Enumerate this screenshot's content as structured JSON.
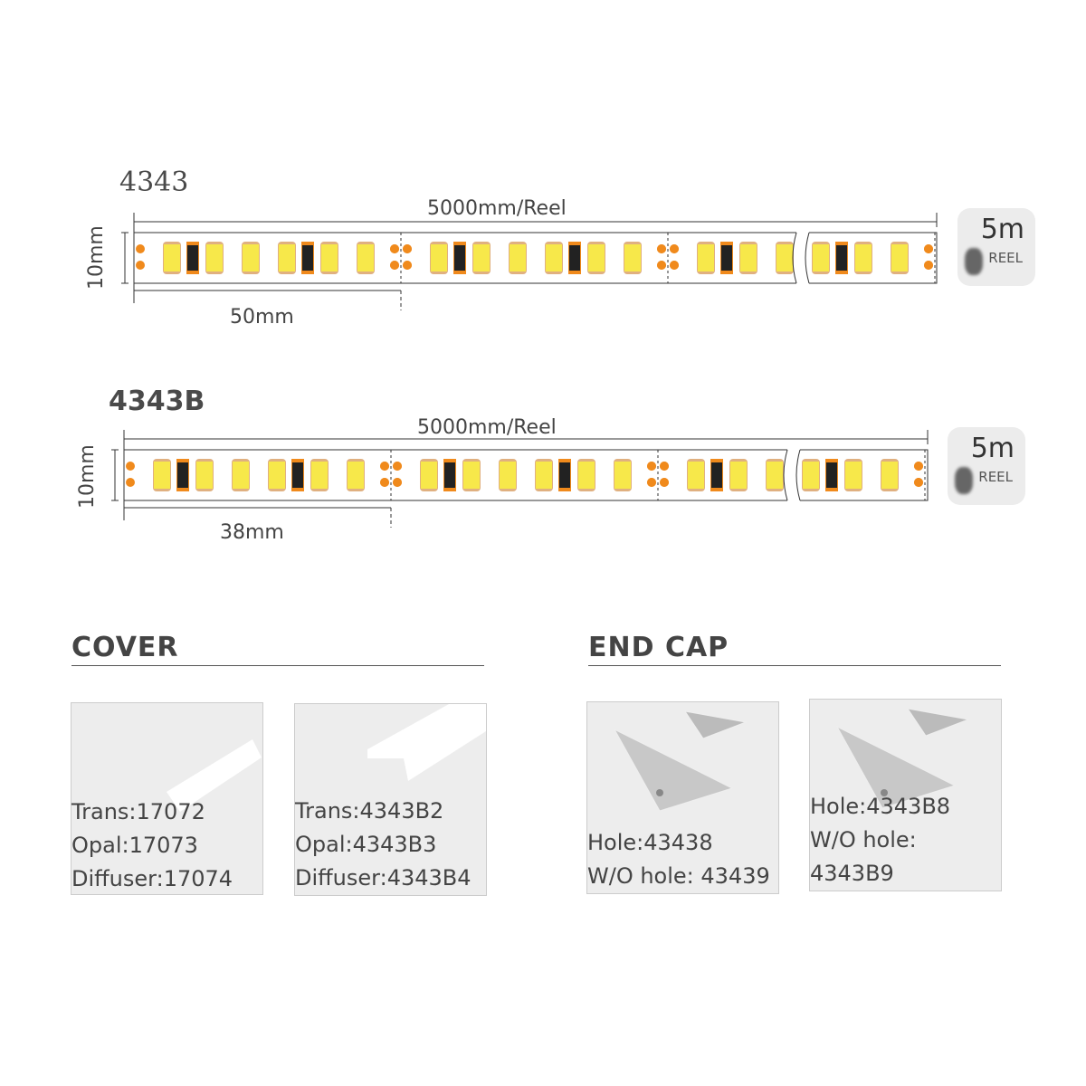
{
  "strips": [
    {
      "model": "4343",
      "length_label": "5000mm/Reel",
      "height_label": "10mm",
      "pitch_label": "50mm",
      "reel": {
        "value": "5m",
        "label": "REEL"
      }
    },
    {
      "model": "4343B",
      "length_label": "5000mm/Reel",
      "height_label": "10mm",
      "pitch_label": "38mm",
      "reel": {
        "value": "5m",
        "label": "REEL"
      }
    }
  ],
  "cover": {
    "title": "COVER",
    "cards": [
      {
        "lines": [
          "Trans:17072",
          "Opal:17073",
          "Diffuser:17074"
        ]
      },
      {
        "lines": [
          "Trans:4343B2",
          "Opal:4343B3",
          "Diffuser:4343B4"
        ]
      }
    ]
  },
  "end_cap": {
    "title": "END CAP",
    "cards": [
      {
        "lines": [
          "Hole:43438",
          "W/O hole: 43439"
        ]
      },
      {
        "lines": [
          "Hole:4343B8",
          "W/O hole: 4343B9"
        ]
      }
    ]
  },
  "colors": {
    "led": "#f7e84a",
    "pad": "#f08a1c",
    "resistor": "#222222",
    "line": "#333333"
  }
}
